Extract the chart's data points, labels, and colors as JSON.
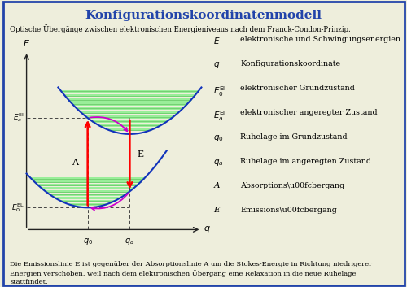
{
  "title": "Konfigurationskoordinatenmodell",
  "subtitle": "Optische Übergänge zwischen elektronischen Energieniveaus nach dem Franck-Condon-Prinzip.",
  "footer": "Die Emissionslinie E ist gegenüber der Absorptionslinie A um die Stokes-Energie in Richtung niedrigerer\nEnergien verschoben, weil nach dem elektronischen Übergang eine Relaxation in die neue Ruhelage\nstattfindet.",
  "bg_color": "#eeeedc",
  "border_color": "#2244aa",
  "title_color": "#2244aa",
  "q0": 0.3,
  "qa": 0.7,
  "E0_EL": 0.12,
  "Ea_EL": 0.52,
  "a_low": 0.55,
  "a_up": 0.55,
  "xlim": [
    -0.3,
    1.4
  ],
  "ylim": [
    0.0,
    1.0
  ]
}
